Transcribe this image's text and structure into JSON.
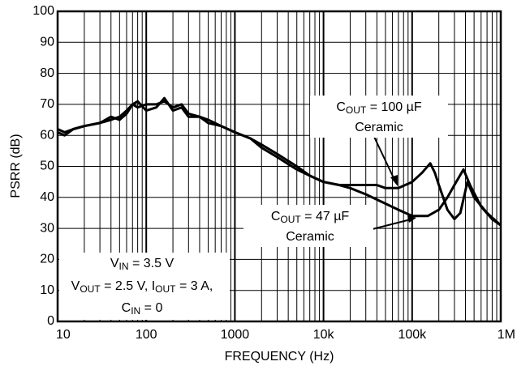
{
  "chart_data": {
    "type": "line",
    "x_label": "FREQUENCY (Hz)",
    "y_label": "PSRR (dB)",
    "xscale": "log",
    "xlim": [
      10,
      1000000
    ],
    "ylim": [
      0,
      100
    ],
    "xticks": [
      10,
      100,
      1000,
      {
        "value": 10000,
        "label": "10k"
      },
      {
        "value": 100000,
        "label": "100k"
      },
      {
        "value": 1000000,
        "label": "1M"
      }
    ],
    "yticks": [
      0,
      10,
      20,
      30,
      40,
      50,
      60,
      70,
      80,
      90,
      100
    ],
    "grid": true,
    "series": [
      {
        "name": "COUT = 100 µF Ceramic",
        "color": "#000000",
        "x": [
          10,
          12,
          15,
          20,
          30,
          40,
          50,
          60,
          70,
          80,
          100,
          130,
          160,
          200,
          250,
          300,
          400,
          500,
          700,
          1000,
          1500,
          2000,
          3000,
          5000,
          7000,
          10000,
          15000,
          20000,
          30000,
          40000,
          50000,
          70000,
          100000,
          130000,
          160000,
          180000,
          200000,
          250000,
          300000,
          350000,
          420000,
          500000,
          700000,
          1000000
        ],
        "values": [
          62,
          61,
          62,
          63,
          64,
          66,
          65,
          67,
          70,
          69,
          70,
          70,
          71,
          69,
          70,
          67,
          66,
          65,
          63,
          61,
          59,
          56,
          53,
          49,
          47,
          45,
          44,
          44,
          44,
          44,
          43,
          43,
          45,
          48,
          51,
          48,
          44,
          36,
          33,
          35,
          45,
          40,
          35,
          31
        ]
      },
      {
        "name": "COUT = 47 µF Ceramic",
        "color": "#000000",
        "x": [
          10,
          12,
          15,
          20,
          30,
          40,
          50,
          60,
          70,
          80,
          100,
          130,
          160,
          200,
          250,
          300,
          400,
          500,
          700,
          1000,
          1500,
          2000,
          3000,
          5000,
          7000,
          10000,
          15000,
          20000,
          30000,
          50000,
          70000,
          100000,
          150000,
          200000,
          250000,
          300000,
          380000,
          450000,
          600000,
          800000,
          1000000
        ],
        "values": [
          61,
          60,
          62,
          63,
          64,
          65,
          66,
          68,
          70,
          71,
          68,
          69,
          72,
          68,
          69,
          66,
          66,
          64,
          63,
          61,
          59,
          57,
          54,
          50,
          47,
          45,
          44,
          43,
          41,
          38,
          36,
          34,
          34,
          36,
          40,
          44,
          49,
          44,
          37,
          33,
          31
        ]
      }
    ],
    "annotations": [
      {
        "lines": [
          [
            "C",
            "OUT",
            " = 100 µF"
          ],
          [
            "Ceramic"
          ]
        ]
      },
      {
        "lines": [
          [
            "C",
            "OUT",
            " = 47 µF"
          ],
          [
            "Ceramic"
          ]
        ]
      },
      {
        "lines": [
          [
            "V",
            "IN",
            " = 3.5 V"
          ],
          [
            "V",
            "OUT",
            " = 2.5 V, I",
            "OUT",
            " = 3 A,"
          ],
          [
            "C",
            "IN",
            " = 0"
          ]
        ]
      }
    ]
  }
}
